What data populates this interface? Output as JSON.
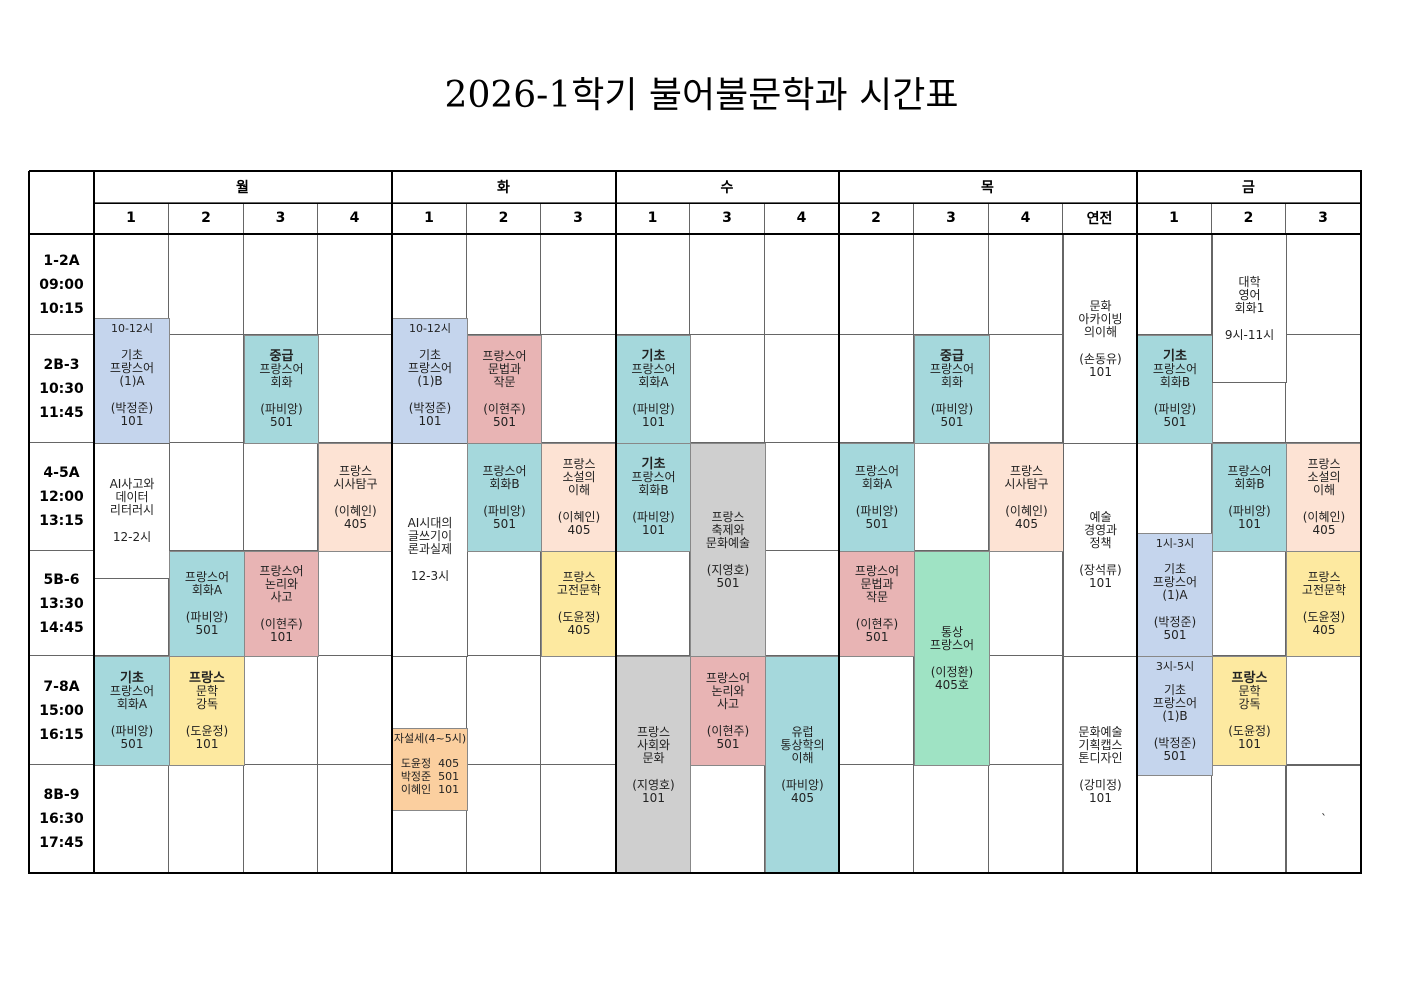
{
  "header": {
    "title": "2026-1학기 불어불문학과 시간표"
  },
  "table": {
    "days": [
      "월",
      "화",
      "수",
      "목",
      "금"
    ],
    "periods": [
      "1",
      "2",
      "3",
      "4",
      "1",
      "2",
      "3",
      "1",
      "3",
      "4",
      "2",
      "3",
      "4",
      "연전",
      "1",
      "2",
      "3"
    ],
    "rows": [
      {
        "period": "1-2A",
        "start": "09:00",
        "end": "10:15"
      },
      {
        "period": "2B-3",
        "start": "10:30",
        "end": "11:45"
      },
      {
        "period": "4-5A",
        "start": "12:00",
        "end": "13:15"
      },
      {
        "period": "5B-6",
        "start": "13:30",
        "end": "14:45"
      },
      {
        "period": "7-8A",
        "start": "15:00",
        "end": "16:15"
      },
      {
        "period": "8B-9",
        "start": "16:30",
        "end": "17:45"
      }
    ],
    "courses": [
      {
        "time": "10-12시",
        "title": [
          "기초",
          "프랑스어",
          "(1)A"
        ],
        "instructor": "(박정준)",
        "room": "101"
      },
      {
        "title": [
          "AI사고와",
          "데이터",
          "리터러시"
        ],
        "time": "12-2시"
      },
      {
        "title": [
          "기초",
          "프랑스어",
          "회화A"
        ],
        "instructor": "(파비앙)",
        "room": "501"
      },
      {
        "title": [
          "프랑스어",
          "회화A"
        ],
        "instructor": "(파비앙)",
        "room": "501"
      },
      {
        "title": [
          "프랑스",
          "문학",
          "강독"
        ],
        "instructor": "(도윤정)",
        "room": "101"
      },
      {
        "title": [
          "중급",
          "프랑스어",
          "회화"
        ],
        "instructor": "(파비앙)",
        "room": "501"
      },
      {
        "title": [
          "프랑스어",
          "논리와",
          "사고"
        ],
        "instructor": "(이현주)",
        "room": "101"
      },
      {
        "title": [
          "프랑스",
          "시사탐구"
        ],
        "instructor": "(이혜인)",
        "room": "405"
      },
      {
        "time": "10-12시",
        "title": [
          "기초",
          "프랑스어",
          "(1)B"
        ],
        "instructor": "(박정준)",
        "room": "101"
      },
      {
        "title": [
          "AI시대의",
          "글쓰기이",
          "론과실제"
        ],
        "time": "12-3시"
      },
      {
        "time": "자설세(4~5시)",
        "entries": [
          "도윤정  405",
          "박정준  501",
          "이혜인  101"
        ]
      },
      {
        "title": [
          "프랑스어",
          "문법과",
          "작문"
        ],
        "instructor": "(이현주)",
        "room": "501"
      },
      {
        "title": [
          "프랑스어",
          "회화B"
        ],
        "instructor": "(파비앙)",
        "room": "501"
      },
      {
        "title": [
          "프랑스",
          "소설의",
          "이해"
        ],
        "instructor": "(이혜인)",
        "room": "405"
      },
      {
        "title": [
          "프랑스",
          "고전문학"
        ],
        "instructor": "(도윤정)",
        "room": "405"
      },
      {
        "title": [
          "기초",
          "프랑스어",
          "회화A"
        ],
        "instructor": "(파비앙)",
        "room": "101"
      },
      {
        "title": [
          "기초",
          "프랑스어",
          "회화B"
        ],
        "instructor": "(파비앙)",
        "room": "101"
      },
      {
        "title": [
          "프랑스",
          "사회와",
          "문화"
        ],
        "instructor": "(지영호)",
        "room": "101"
      },
      {
        "title": [
          "프랑스",
          "축제와",
          "문화예술"
        ],
        "instructor": "(지영호)",
        "room": "501"
      },
      {
        "title": [
          "프랑스어",
          "논리와",
          "사고"
        ],
        "instructor": "(이현주)",
        "room": "501"
      },
      {
        "title": [
          "유럽",
          "통상학의",
          "이해"
        ],
        "instructor": "(파비앙)",
        "room": "405"
      },
      {
        "title": [
          "프랑스어",
          "회화A"
        ],
        "instructor": "(파비앙)",
        "room": "501"
      },
      {
        "title": [
          "프랑스어",
          "문법과",
          "작문"
        ],
        "instructor": "(이현주)",
        "room": "501"
      },
      {
        "title": [
          "중급",
          "프랑스어",
          "회화"
        ],
        "instructor": "(파비앙)",
        "room": "501"
      },
      {
        "title": [
          "통상",
          "프랑스어"
        ],
        "instructor": "(이정환)",
        "room": "405호"
      },
      {
        "title": [
          "프랑스",
          "시사탐구"
        ],
        "instructor": "(이혜인)",
        "room": "405"
      },
      {
        "title": [
          "문화",
          "아카이빙",
          "의이해"
        ],
        "instructor": "(손동유)",
        "room": "101"
      },
      {
        "title": [
          "예술",
          "경영과",
          "정책"
        ],
        "instructor": "(장석류)",
        "room": "101"
      },
      {
        "title": [
          "문화예술",
          "기획캡스",
          "톤디자인"
        ],
        "instructor": "(강미정)",
        "room": "101"
      },
      {
        "title": [
          "기초",
          "프랑스어",
          "회화B"
        ],
        "instructor": "(파비앙)",
        "room": "501"
      },
      {
        "time": "1시-3시",
        "title": [
          "기초",
          "프랑스어",
          "(1)A"
        ],
        "instructor": "(박정준)",
        "room": "501"
      },
      {
        "time": "3시-5시",
        "title": [
          "기초",
          "프랑스어",
          "(1)B"
        ],
        "instructor": "(박정준)",
        "room": "501"
      },
      {
        "title": [
          "대학",
          "영어",
          "회화1"
        ],
        "time": "9시-11시"
      },
      {
        "title": [
          "프랑스어",
          "회화B"
        ],
        "instructor": "(파비앙)",
        "room": "101"
      },
      {
        "title": [
          "프랑스",
          "문학",
          "강독"
        ],
        "instructor": "(도윤정)",
        "room": "101"
      },
      {
        "title": [
          "프랑스",
          "소설의",
          "이해"
        ],
        "instructor": "(이혜인)",
        "room": "405"
      },
      {
        "title": [
          "프랑스",
          "고전문학"
        ],
        "instructor": "(도윤정)",
        "room": "405"
      },
      {
        "title": [
          "`"
        ]
      }
    ]
  }
}
